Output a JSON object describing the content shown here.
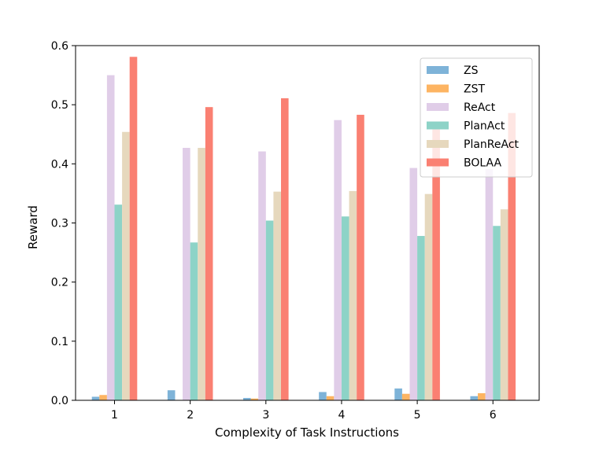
{
  "chart_data": {
    "type": "bar",
    "title": "",
    "xlabel": "Complexity of Task Instructions",
    "ylabel": "Reward",
    "categories": [
      "1",
      "2",
      "3",
      "4",
      "5",
      "6"
    ],
    "ylim": [
      0,
      0.6
    ],
    "yticks": [
      "0.0",
      "0.1",
      "0.2",
      "0.3",
      "0.4",
      "0.5",
      "0.6"
    ],
    "ytick_values": [
      0,
      0.1,
      0.2,
      0.3,
      0.4,
      0.5,
      0.6
    ],
    "grid": false,
    "legend_position": "top-right",
    "series": [
      {
        "name": "ZS",
        "color": "#7eb3d8",
        "values": [
          0.006,
          0.017,
          0.004,
          0.014,
          0.02,
          0.007
        ]
      },
      {
        "name": "ZST",
        "color": "#fdb462",
        "values": [
          0.009,
          0.0,
          0.003,
          0.007,
          0.011,
          0.012
        ]
      },
      {
        "name": "ReAct",
        "color": "#e0cde8",
        "values": [
          0.55,
          0.427,
          0.421,
          0.474,
          0.393,
          0.391
        ]
      },
      {
        "name": "PlanAct",
        "color": "#8dd3c7",
        "values": [
          0.331,
          0.267,
          0.304,
          0.311,
          0.278,
          0.295
        ]
      },
      {
        "name": "PlanReAct",
        "color": "#e6d8bd",
        "values": [
          0.454,
          0.427,
          0.353,
          0.354,
          0.349,
          0.323
        ]
      },
      {
        "name": "BOLAA",
        "color": "#fa8072",
        "values": [
          0.581,
          0.496,
          0.511,
          0.483,
          0.466,
          0.486
        ]
      }
    ]
  }
}
